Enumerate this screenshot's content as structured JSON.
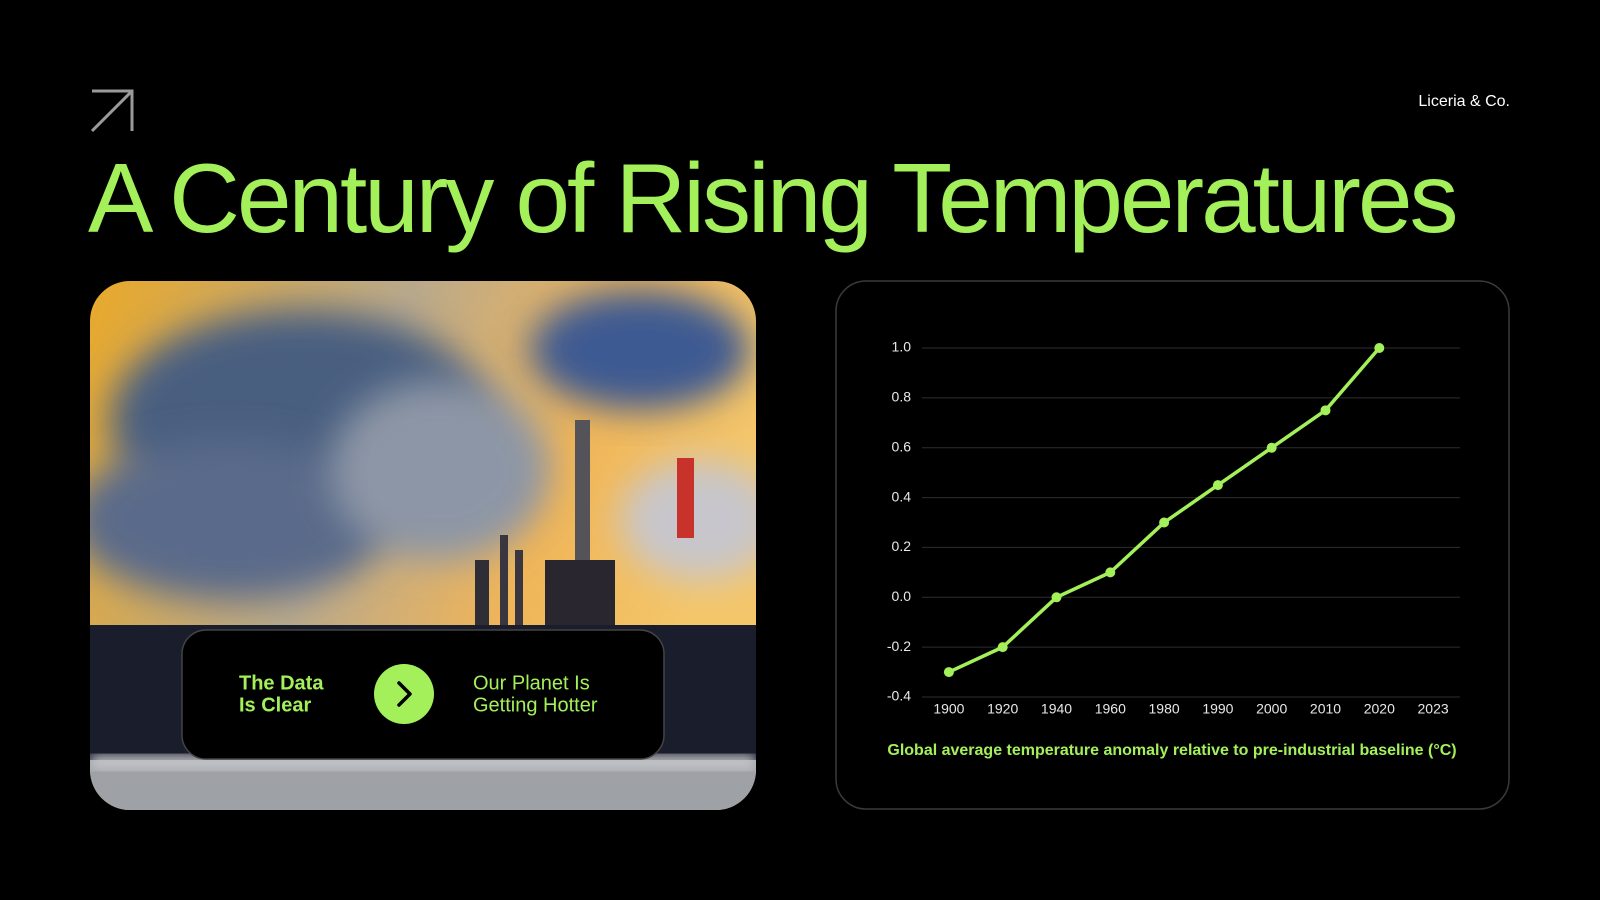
{
  "brand": "Liceria & Co.",
  "title": "A Century of Rising Temperatures",
  "callout": {
    "left": [
      "The Data",
      "Is Clear"
    ],
    "right": [
      "Our Planet Is",
      "Getting Hotter"
    ]
  },
  "chart_data": {
    "type": "line",
    "categories": [
      "1900",
      "1920",
      "1940",
      "1960",
      "1980",
      "1990",
      "2000",
      "2010",
      "2020",
      "2023"
    ],
    "values": [
      -0.3,
      -0.2,
      0,
      0.1,
      0.3,
      0.45,
      0.6,
      0.75,
      1,
      null
    ],
    "color": "#a3f05a",
    "ylim": [
      -0.4,
      1
    ],
    "yticks": [
      -0.4,
      -0.2,
      {
        "value": 0,
        "label": "0.0"
      },
      0.2,
      0.4,
      0.6,
      0.8,
      {
        "value": 1,
        "label": "1.0"
      }
    ],
    "grid": true,
    "x_label": "Global average temperature anomaly relative to pre-industrial baseline (°C)"
  }
}
